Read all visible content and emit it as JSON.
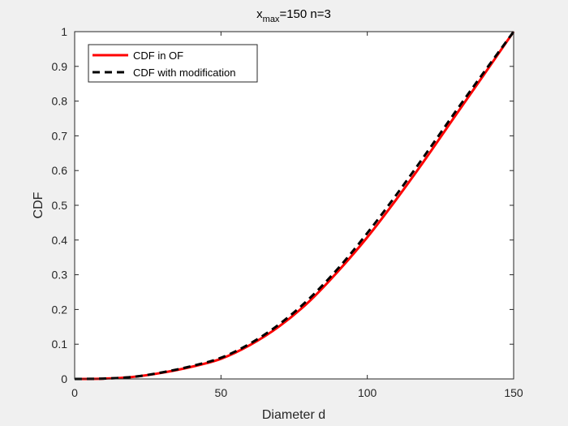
{
  "chart_data": {
    "type": "line",
    "title": {
      "base": "x",
      "subscript": "max",
      "rest": "=150 n=3"
    },
    "xlabel": "Diameter d",
    "ylabel": "CDF",
    "xlim": [
      0,
      150
    ],
    "ylim": [
      0,
      1
    ],
    "xticks": [
      0,
      50,
      100,
      150
    ],
    "xtick_labels": [
      "0",
      "50",
      "100",
      "150"
    ],
    "yticks": [
      0,
      0.1,
      0.2,
      0.3,
      0.4,
      0.5,
      0.6,
      0.7,
      0.8,
      0.9,
      1
    ],
    "ytick_labels": [
      "0",
      "0.1",
      "0.2",
      "0.3",
      "0.4",
      "0.5",
      "0.6",
      "0.7",
      "0.8",
      "0.9",
      "1"
    ],
    "grid": false,
    "legend_position": "top-left",
    "series": [
      {
        "name": "CDF in OF",
        "color": "#ff0000",
        "style": "solid",
        "x": [
          0,
          10,
          20,
          30,
          40,
          50,
          60,
          70,
          80,
          90,
          100,
          110,
          120,
          130,
          140,
          150
        ],
        "y": [
          0,
          0.001,
          0.006,
          0.018,
          0.035,
          0.058,
          0.098,
          0.152,
          0.222,
          0.31,
          0.408,
          0.518,
          0.635,
          0.757,
          0.878,
          1.0
        ]
      },
      {
        "name": "CDF with modification",
        "color": "#000000",
        "style": "dashed",
        "x": [
          0,
          10,
          20,
          30,
          40,
          50,
          60,
          70,
          80,
          90,
          100,
          110,
          120,
          130,
          140,
          150
        ],
        "y": [
          0,
          0.001,
          0.006,
          0.019,
          0.037,
          0.061,
          0.102,
          0.158,
          0.23,
          0.318,
          0.42,
          0.531,
          0.648,
          0.768,
          0.885,
          1.0
        ]
      }
    ]
  }
}
